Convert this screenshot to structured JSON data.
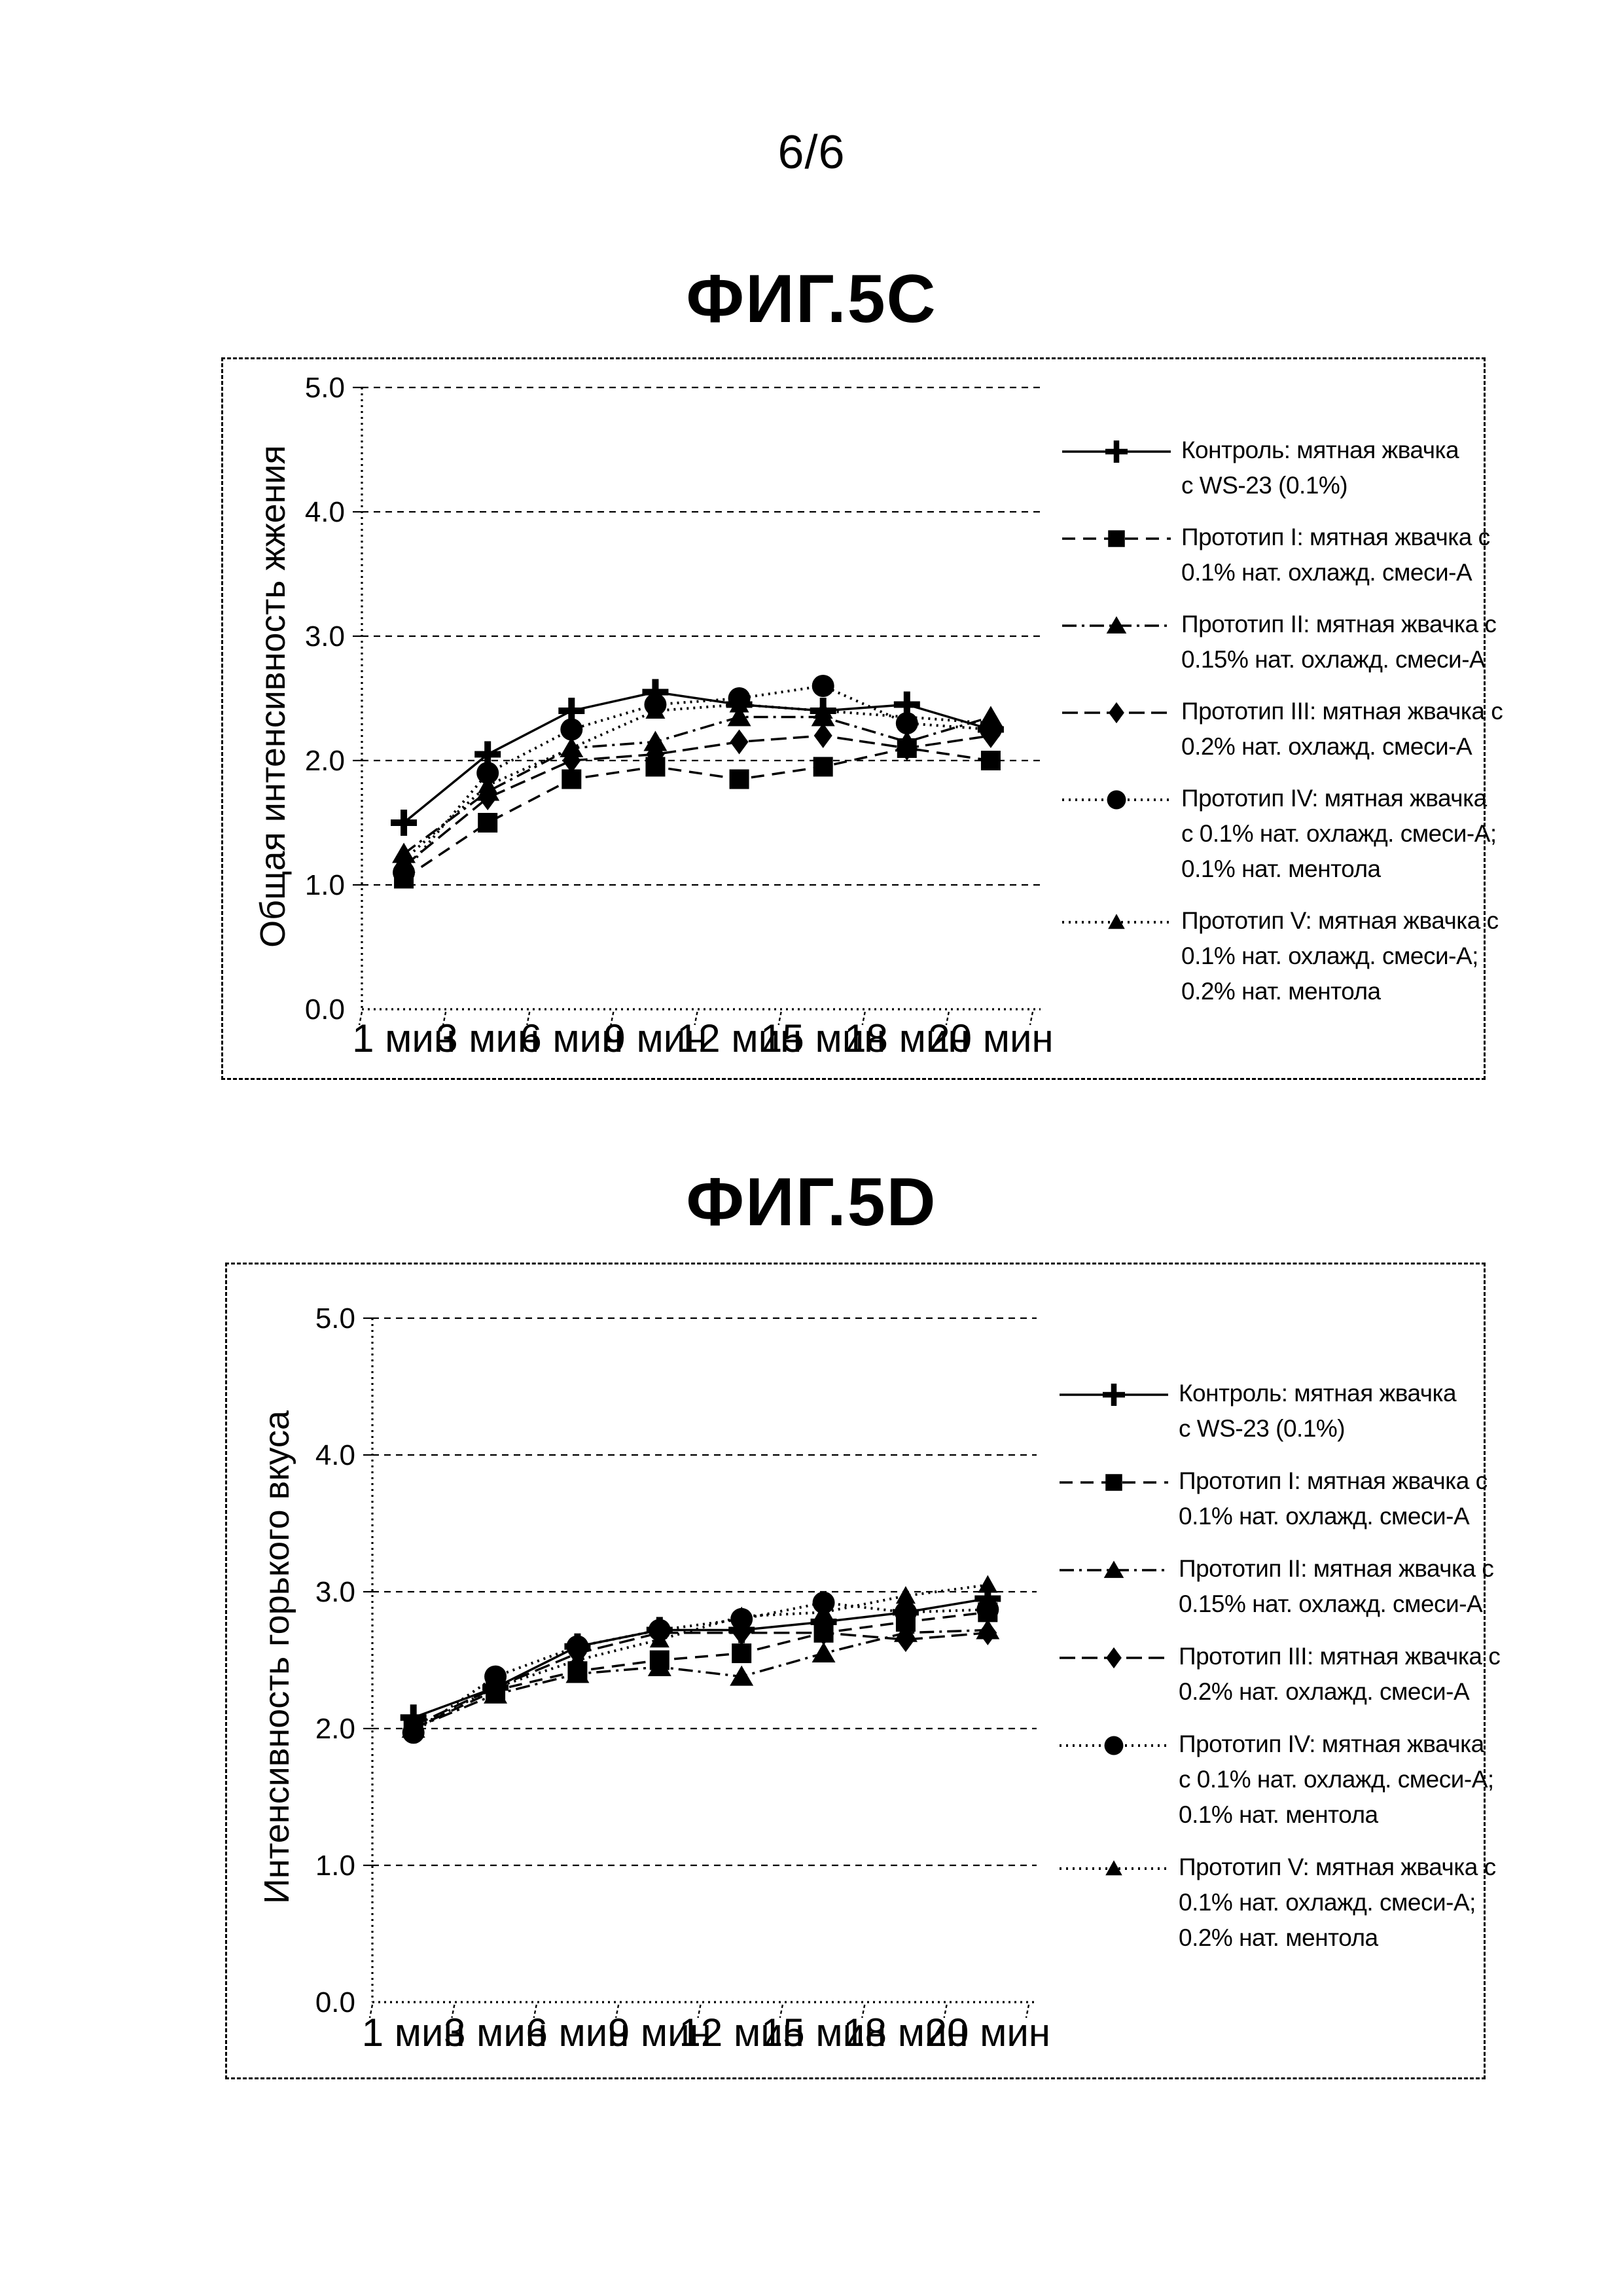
{
  "page": {
    "number": "6/6"
  },
  "colors": {
    "ink": "#000000",
    "paper": "#ffffff"
  },
  "x_categories": [
    "1 мин",
    "3 мин",
    "6 мин",
    "9 мин",
    "12 мин",
    "15 мин",
    "18 мин",
    "20 мин"
  ],
  "y_ticks": [
    "5.0",
    "4.0",
    "3.0",
    "2.0",
    "1.0",
    "0.0"
  ],
  "legend": [
    {
      "marker": "plus",
      "line_style": "solid",
      "lines": [
        "Контроль: мятная жвачка",
        "с WS-23 (0.1%)"
      ]
    },
    {
      "marker": "square",
      "line_style": "dashed",
      "lines": [
        "Прототип I: мятная жвачка с",
        "0.1% нат. охлажд. смеси-А"
      ]
    },
    {
      "marker": "triangle",
      "line_style": "dash-dot",
      "lines": [
        "Прототип II: мятная жвачка с",
        "0.15% нат. охлажд. смеси-А"
      ]
    },
    {
      "marker": "diamond",
      "line_style": "long-dash",
      "lines": [
        "Прототип III: мятная жвачка с",
        "0.2% нат. охлажд. смеси-А"
      ]
    },
    {
      "marker": "circle",
      "line_style": "dotted",
      "lines": [
        "Прототип IV: мятная жвачка",
        "с 0.1% нат. охлажд. смеси-А;",
        "0.1% нат. ментола"
      ]
    },
    {
      "marker": "triangle-small",
      "line_style": "dotted",
      "lines": [
        "Прототип V: мятная жвачка с",
        "0.1% нат. охлажд. смеси-А;",
        "0.2% нат. ментола"
      ]
    }
  ],
  "chart_data": [
    {
      "type": "line",
      "title": "ФИГ.5C",
      "ylabel": "Общая интенсивность жжения",
      "xlabel": "",
      "ylim": [
        0.0,
        5.0
      ],
      "grid": "horizontal-dashed",
      "legend_position": "right",
      "categories": [
        "1 мин",
        "3 мин",
        "6 мин",
        "9 мин",
        "12 мин",
        "15 мин",
        "18 мин",
        "20 мин"
      ],
      "series": [
        {
          "name": "Контроль: мятная жвачка с WS-23 (0.1%)",
          "values": [
            1.5,
            2.05,
            2.4,
            2.55,
            2.45,
            2.4,
            2.45,
            2.25
          ]
        },
        {
          "name": "Прототип I: мятная жвачка с 0.1% нат. охлажд. смеси-А",
          "values": [
            1.05,
            1.5,
            1.85,
            1.95,
            1.85,
            1.95,
            2.1,
            2.0
          ]
        },
        {
          "name": "Прототип II: мятная жвачка с 0.15% нат. охлажд. смеси-А",
          "values": [
            1.25,
            1.75,
            2.1,
            2.15,
            2.35,
            2.35,
            2.15,
            2.35
          ]
        },
        {
          "name": "Прототип III: мятная жвачка с 0.2% нат. охлажд. смеси-А",
          "values": [
            1.15,
            1.7,
            2.0,
            2.05,
            2.15,
            2.2,
            2.1,
            2.2
          ]
        },
        {
          "name": "Прототип IV: мятная жвачка с 0.1% нат. охлажд. смеси-А; 0.1% нат. ментола",
          "values": [
            1.1,
            1.9,
            2.25,
            2.45,
            2.5,
            2.6,
            2.3,
            2.25
          ]
        },
        {
          "name": "Прототип V: мятная жвачка с 0.1% нат. охлажд. смеси-А; 0.2% нат. ментола",
          "values": [
            1.2,
            1.8,
            2.1,
            2.4,
            2.45,
            2.4,
            2.35,
            2.3
          ]
        }
      ]
    },
    {
      "type": "line",
      "title": "ФИГ.5D",
      "ylabel": "Интенсивность горького вкуса",
      "xlabel": "",
      "ylim": [
        0.0,
        5.0
      ],
      "grid": "horizontal-dashed",
      "legend_position": "right",
      "categories": [
        "1 мин",
        "3 мин",
        "6 мин",
        "9 мин",
        "12 мин",
        "15 мин",
        "18 мин",
        "20 мин"
      ],
      "series": [
        {
          "name": "Контроль: мятная жвачка с WS-23 (0.1%)",
          "values": [
            2.08,
            2.3,
            2.6,
            2.72,
            2.72,
            2.78,
            2.85,
            2.95
          ]
        },
        {
          "name": "Прототип I: мятная жвачка с 0.1% нат. охлажд. смеси-А",
          "values": [
            2.0,
            2.28,
            2.42,
            2.5,
            2.55,
            2.7,
            2.78,
            2.85
          ]
        },
        {
          "name": "Прототип II: мятная жвачка с 0.15% нат. охлажд. смеси-А",
          "values": [
            2.0,
            2.25,
            2.4,
            2.45,
            2.38,
            2.55,
            2.7,
            2.72
          ]
        },
        {
          "name": "Прототип III: мятная жвачка с 0.2% нат. охлажд. смеси-А",
          "values": [
            2.02,
            2.3,
            2.55,
            2.7,
            2.7,
            2.7,
            2.65,
            2.7
          ]
        },
        {
          "name": "Прототип IV: мятная жвачка с 0.1% нат. охлажд. смеси-А; 0.1% нат. ментола",
          "values": [
            1.97,
            2.38,
            2.6,
            2.72,
            2.8,
            2.92,
            2.85,
            2.87
          ]
        },
        {
          "name": "Прототип V: мятная жвачка с 0.1% нат. охлажд. смеси-А; 0.2% нат. ментола",
          "values": [
            2.0,
            2.3,
            2.5,
            2.65,
            2.82,
            2.85,
            2.97,
            3.05
          ]
        }
      ]
    }
  ]
}
